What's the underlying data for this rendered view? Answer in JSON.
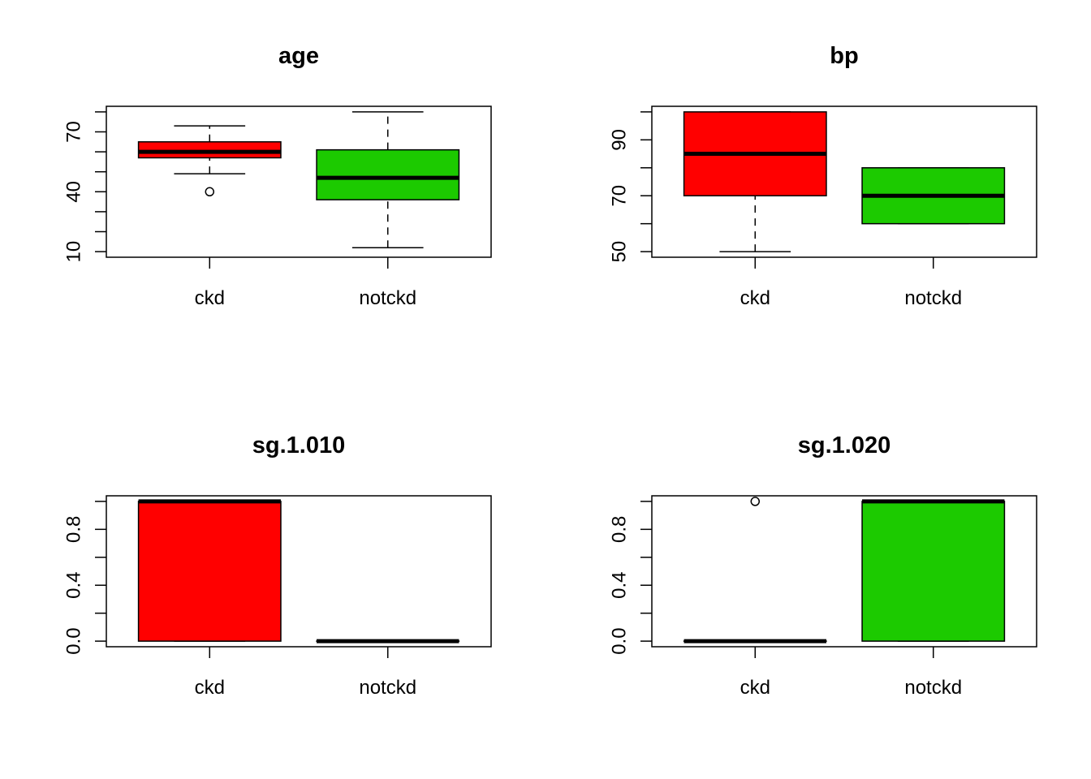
{
  "chart_data": [
    {
      "type": "boxplot",
      "title": "age",
      "categories": [
        "ckd",
        "notckd"
      ],
      "ylim": [
        10,
        80
      ],
      "yticks": [
        10,
        40,
        70
      ],
      "yminor": [
        20,
        30,
        50,
        60,
        80
      ],
      "colors": [
        "#FF0000",
        "#1CCA00"
      ],
      "boxes": [
        {
          "category": "ckd",
          "whisker_low": 49,
          "q1": 57,
          "median": 60,
          "q3": 65,
          "whisker_high": 73,
          "outliers": [
            40
          ]
        },
        {
          "category": "notckd",
          "whisker_low": 12,
          "q1": 36,
          "median": 47,
          "q3": 61,
          "whisker_high": 80,
          "outliers": []
        }
      ]
    },
    {
      "type": "boxplot",
      "title": "bp",
      "categories": [
        "ckd",
        "notckd"
      ],
      "ylim": [
        50,
        100
      ],
      "yticks": [
        50,
        70,
        90
      ],
      "yminor": [
        60,
        80,
        100
      ],
      "colors": [
        "#FF0000",
        "#1CCA00"
      ],
      "boxes": [
        {
          "category": "ckd",
          "whisker_low": 50,
          "q1": 70,
          "median": 85,
          "q3": 100,
          "whisker_high": 100,
          "outliers": []
        },
        {
          "category": "notckd",
          "whisker_low": 60,
          "q1": 60,
          "median": 70,
          "q3": 80,
          "whisker_high": 80,
          "outliers": []
        }
      ]
    },
    {
      "type": "boxplot",
      "title": "sg.1.010",
      "categories": [
        "ckd",
        "notckd"
      ],
      "ylim": [
        0,
        1
      ],
      "yticks": [
        0.0,
        0.4,
        0.8
      ],
      "ytick_labels": [
        "0.0",
        "0.4",
        "0.8"
      ],
      "yminor": [
        0.2,
        0.6,
        1.0
      ],
      "colors": [
        "#FF0000",
        "#1CCA00"
      ],
      "boxes": [
        {
          "category": "ckd",
          "whisker_low": 0,
          "q1": 0,
          "median": 1,
          "q3": 1,
          "whisker_high": 1,
          "outliers": []
        },
        {
          "category": "notckd",
          "whisker_low": 0,
          "q1": 0,
          "median": 0,
          "q3": 0,
          "whisker_high": 0,
          "outliers": []
        }
      ]
    },
    {
      "type": "boxplot",
      "title": "sg.1.020",
      "categories": [
        "ckd",
        "notckd"
      ],
      "ylim": [
        0,
        1
      ],
      "yticks": [
        0.0,
        0.4,
        0.8
      ],
      "ytick_labels": [
        "0.0",
        "0.4",
        "0.8"
      ],
      "yminor": [
        0.2,
        0.6,
        1.0
      ],
      "colors": [
        "#FF0000",
        "#1CCA00"
      ],
      "boxes": [
        {
          "category": "ckd",
          "whisker_low": 0,
          "q1": 0,
          "median": 0,
          "q3": 0,
          "whisker_high": 0,
          "outliers": [
            1
          ]
        },
        {
          "category": "notckd",
          "whisker_low": 0,
          "q1": 0,
          "median": 1,
          "q3": 1,
          "whisker_high": 1,
          "outliers": []
        }
      ]
    }
  ]
}
